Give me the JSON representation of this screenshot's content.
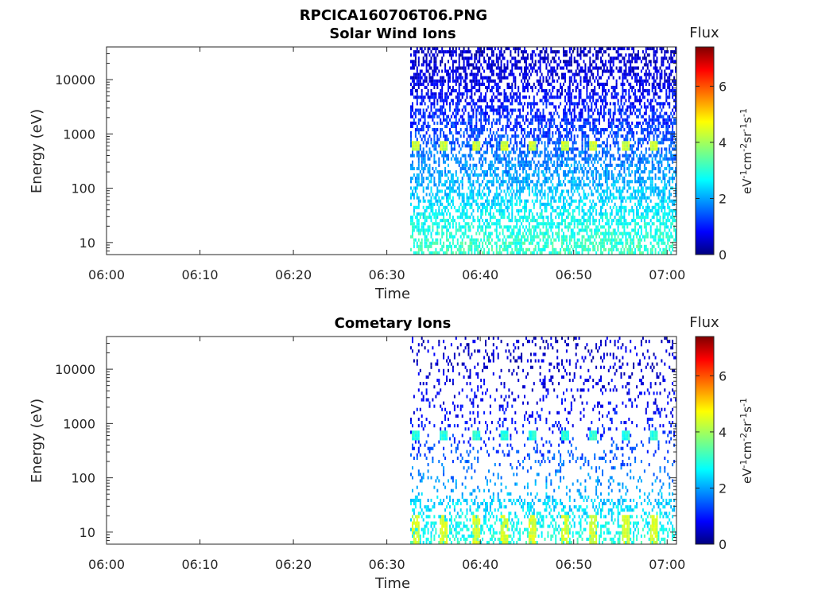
{
  "figure": {
    "title": "RPCICA160706T06.PNG"
  },
  "colorbar": {
    "title": "Flux",
    "range": [
      0,
      7.4
    ],
    "ticks": [
      "0",
      "2",
      "4",
      "6"
    ],
    "tick_values": [
      0,
      2,
      4,
      6
    ],
    "colormap": "jet"
  },
  "chart_data": [
    {
      "type": "heatmap",
      "title": "Solar Wind Ions",
      "xlabel": "Time",
      "ylabel": "Energy (eV)",
      "x_range": [
        "06:00",
        "07:01"
      ],
      "y_scale": "log",
      "y_range": [
        6,
        40000
      ],
      "x_ticks": [
        "06:00",
        "06:10",
        "06:20",
        "06:30",
        "06:40",
        "06:50",
        "07:00"
      ],
      "y_ticks": [
        "10",
        "100",
        "1000",
        "10000"
      ],
      "colorbar_label": "eV-1cm-2sr-1s-1",
      "data_start": "06:32:30",
      "data_end": "07:01",
      "peak_energy_eV": 600,
      "peak_times": [
        "06:33:00",
        "06:36:00",
        "06:39:30",
        "06:42:30",
        "06:45:30",
        "06:49:00",
        "06:52:00",
        "06:55:30",
        "06:58:30"
      ],
      "peak_flux": 4.2,
      "background_flux_by_energy": [
        {
          "energy_eV": 8,
          "flux": 3.2
        },
        {
          "energy_eV": 30,
          "flux": 2.8
        },
        {
          "energy_eV": 100,
          "flux": 2.3
        },
        {
          "energy_eV": 300,
          "flux": 1.9
        },
        {
          "energy_eV": 1000,
          "flux": 1.4
        },
        {
          "energy_eV": 10000,
          "flux": 0.7
        },
        {
          "energy_eV": 30000,
          "flux": 0.5
        }
      ]
    },
    {
      "type": "heatmap",
      "title": "Cometary Ions",
      "xlabel": "Time",
      "ylabel": "Energy (eV)",
      "x_range": [
        "06:00",
        "07:01"
      ],
      "y_scale": "log",
      "y_range": [
        6,
        40000
      ],
      "x_ticks": [
        "06:00",
        "06:10",
        "06:20",
        "06:30",
        "06:40",
        "06:50",
        "07:00"
      ],
      "y_ticks": [
        "10",
        "100",
        "1000",
        "10000"
      ],
      "colorbar_label": "eV-1cm-2sr-1s-1",
      "data_start": "06:32:30",
      "data_end": "07:01",
      "peak_energy_eV": 600,
      "peak_times": [
        "06:33:00",
        "06:36:00",
        "06:39:30",
        "06:42:30",
        "06:45:30",
        "06:49:00",
        "06:52:00",
        "06:55:30",
        "06:58:30"
      ],
      "peak_flux": 3.0,
      "low_energy_bursts_eV": 8,
      "low_energy_burst_flux": 4.3,
      "background_flux_by_energy": [
        {
          "energy_eV": 8,
          "flux": 3.0
        },
        {
          "energy_eV": 30,
          "flux": 2.5
        },
        {
          "energy_eV": 100,
          "flux": 1.9
        },
        {
          "energy_eV": 1000,
          "flux": 1.0
        },
        {
          "energy_eV": 10000,
          "flux": 0.6
        },
        {
          "energy_eV": 30000,
          "flux": 0.5
        }
      ]
    }
  ]
}
